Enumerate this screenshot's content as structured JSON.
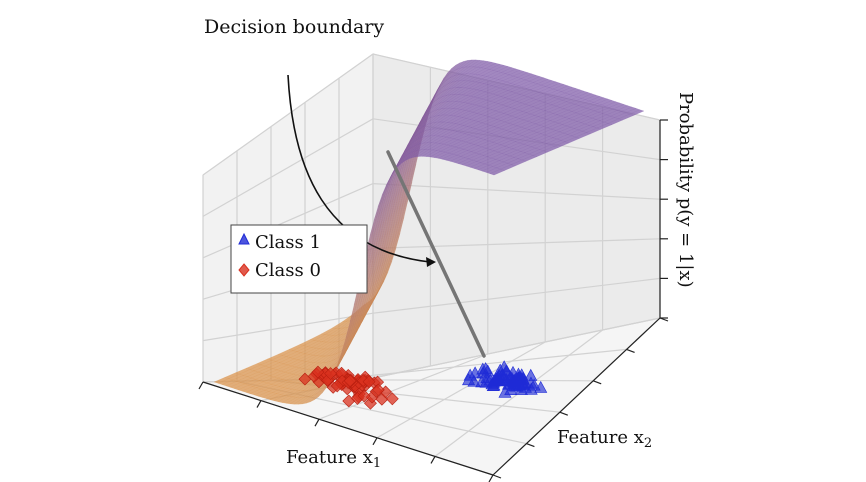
{
  "chart_data": {
    "type": "surface3d",
    "annotation": "Decision boundary",
    "xlabel": "Feature x",
    "xlabel_sub": "1",
    "ylabel": "Feature x",
    "ylabel_sub": "2",
    "zlabel": "Probability p(y = 1|x)",
    "surface": {
      "function": "sigmoid",
      "z_range": [
        0,
        1
      ],
      "colors": {
        "low": "#d9924a",
        "high": "#7e5aa8"
      }
    },
    "legend": {
      "position": "left",
      "entries": [
        {
          "label": "Class 1",
          "marker": "triangle",
          "color": "#1f2bd6"
        },
        {
          "label": "Class 0",
          "marker": "diamond",
          "color": "#d9311f"
        }
      ]
    },
    "series": [
      {
        "name": "Class 1",
        "marker": "triangle",
        "color": "#1f2bd6",
        "count": 70
      },
      {
        "name": "Class 0",
        "marker": "diamond",
        "color": "#d9311f",
        "count": 70
      }
    ],
    "grid": true
  }
}
